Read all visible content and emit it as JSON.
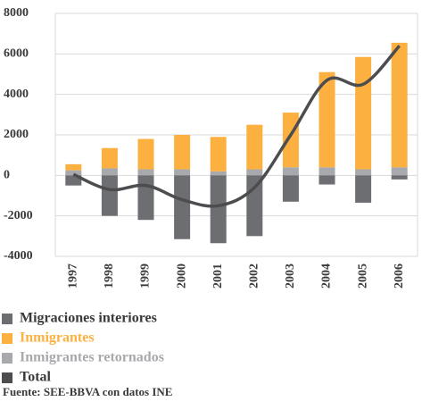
{
  "chart_data": {
    "type": "bar",
    "categories": [
      "1997",
      "1998",
      "1999",
      "2000",
      "2001",
      "2002",
      "2003",
      "2004",
      "2005",
      "2006"
    ],
    "series": [
      {
        "name": "Migraciones interiores",
        "color": "#6d6e71",
        "values": [
          -500,
          -2000,
          -2200,
          -3150,
          -3350,
          -3000,
          -1300,
          -450,
          -1350,
          -200
        ]
      },
      {
        "name": "Inmigrantes",
        "color": "#fbb040",
        "values": [
          300,
          1000,
          1500,
          1700,
          1700,
          2200,
          2700,
          4700,
          5550,
          6150
        ]
      },
      {
        "name": "Inmigrantes retornados",
        "color": "#a7a9ac",
        "values": [
          250,
          350,
          300,
          300,
          200,
          300,
          400,
          400,
          300,
          400
        ]
      },
      {
        "name": "Total",
        "color": "#4d4d4f",
        "type": "line",
        "values": [
          50,
          -700,
          -500,
          -1200,
          -1500,
          -600,
          2000,
          4700,
          4500,
          6400
        ]
      }
    ],
    "stack_order": [
      2,
      1,
      0
    ],
    "ylim": [
      -4000,
      8000
    ],
    "yticks": [
      -4000,
      -2000,
      0,
      2000,
      4000,
      6000,
      8000
    ],
    "grid": true,
    "source": "Fuente: SEE-BBVA con datos INE"
  }
}
